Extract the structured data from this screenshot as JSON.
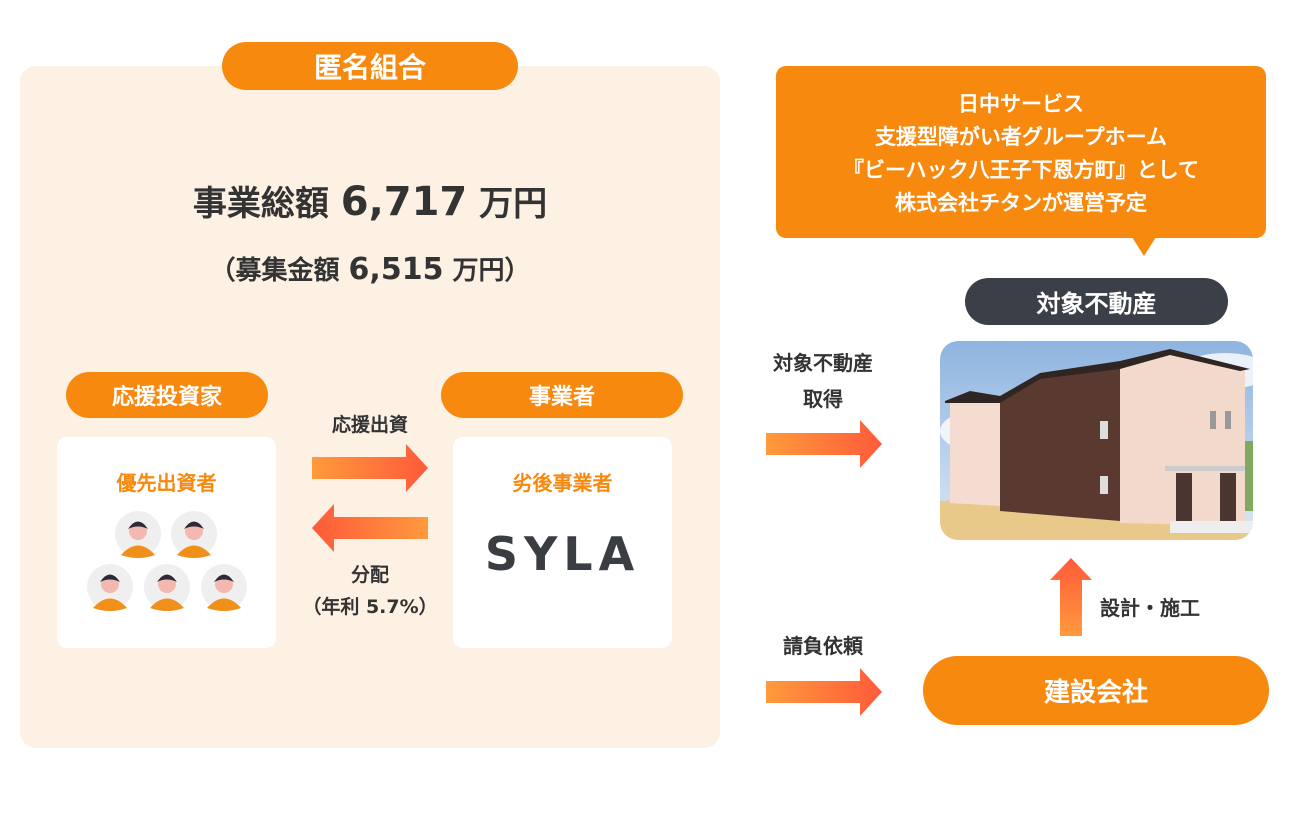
{
  "scheme": {
    "title": "匿名組合",
    "total_label": "事業総額",
    "total_value": "6,717",
    "total_unit": "万円",
    "raise_open": "（募集金額",
    "raise_value": "6,515",
    "raise_unit": "万円）"
  },
  "investor": {
    "header": "応援投資家",
    "box_label": "優先出資者",
    "icon": "people-avatars-icon"
  },
  "operator": {
    "header": "事業者",
    "box_label": "劣後事業者",
    "logo": "SYLA"
  },
  "flows": {
    "invest": "応援出資",
    "distribute": "分配",
    "rate": "（年利 5.7%）",
    "acquire_line1": "対象不動産",
    "acquire_line2": "取得",
    "contract": "請負依頼",
    "build": "設計・施工"
  },
  "property": {
    "header": "対象不動産",
    "callout": [
      "日中サービス",
      "支援型障がい者グループホーム",
      "『ビーハック八王子下恩方町』として",
      "株式会社チタンが運営予定"
    ]
  },
  "builder": {
    "label": "建設会社"
  },
  "colors": {
    "orange": "#f7890f",
    "panel": "#fdf1e4",
    "dark": "#3b3f47"
  }
}
